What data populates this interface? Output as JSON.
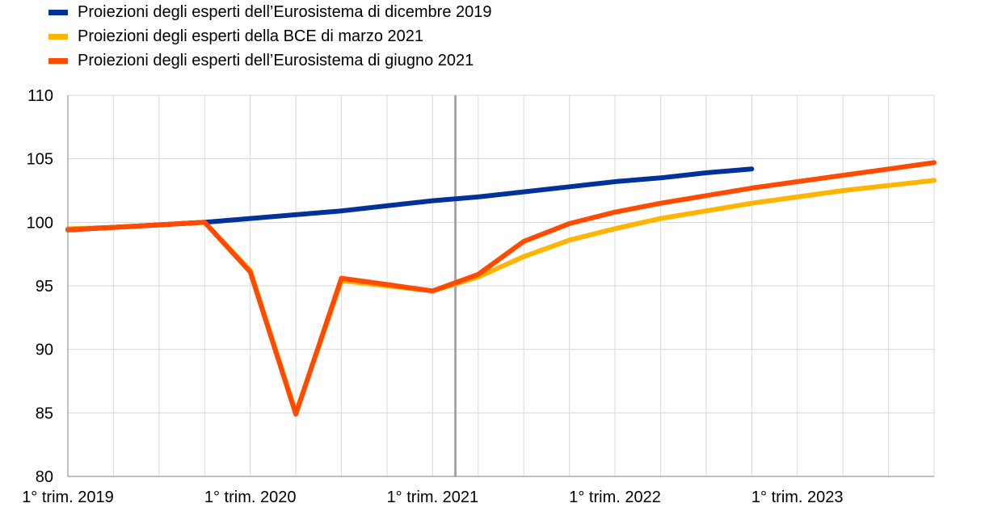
{
  "chart_data": {
    "type": "line",
    "title": "",
    "xlabel": "",
    "ylabel": "",
    "ylim": [
      80,
      110
    ],
    "yticks": [
      80,
      85,
      90,
      95,
      100,
      105,
      110
    ],
    "x": [
      "2019-Q1",
      "2019-Q2",
      "2019-Q3",
      "2019-Q4",
      "2020-Q1",
      "2020-Q2",
      "2020-Q3",
      "2020-Q4",
      "2021-Q1",
      "2021-Q2",
      "2021-Q3",
      "2021-Q4",
      "2022-Q1",
      "2022-Q2",
      "2022-Q3",
      "2022-Q4",
      "2023-Q1",
      "2023-Q2",
      "2023-Q3",
      "2023-Q4"
    ],
    "xtick_labels": [
      "1° trim. 2019",
      "1° trim. 2020",
      "1° trim. 2021",
      "1° trim. 2022",
      "1° trim. 2023"
    ],
    "xtick_label_positions": [
      "2019-Q1",
      "2020-Q1",
      "2021-Q1",
      "2022-Q1",
      "2023-Q1"
    ],
    "grid": true,
    "legend_position": "top-left",
    "vertical_marker": "2021-Q1",
    "series": [
      {
        "name": "Proiezioni degli esperti dell’Eurosistema di dicembre 2019",
        "color": "#003299",
        "values": [
          99.4,
          99.6,
          99.8,
          100.0,
          100.3,
          100.6,
          100.9,
          101.3,
          101.7,
          102.0,
          102.4,
          102.8,
          103.2,
          103.5,
          103.9,
          104.2,
          null,
          null,
          null,
          null
        ]
      },
      {
        "name": "Proiezioni degli esperti della BCE di marzo 2021",
        "color": "#FFB400",
        "values": [
          99.5,
          99.6,
          99.8,
          100.0,
          96.2,
          85.0,
          95.4,
          95.0,
          94.6,
          95.7,
          97.3,
          98.6,
          99.5,
          100.3,
          100.9,
          101.5,
          102.0,
          102.5,
          102.9,
          103.3
        ]
      },
      {
        "name": "Proiezioni degli esperti dell’Eurosistema di giugno 2021",
        "color": "#FF4B00",
        "values": [
          99.4,
          99.6,
          99.8,
          100.0,
          96.1,
          84.9,
          95.6,
          95.1,
          94.6,
          95.9,
          98.5,
          99.9,
          100.8,
          101.5,
          102.1,
          102.7,
          103.2,
          103.7,
          104.2,
          104.7
        ]
      }
    ]
  }
}
